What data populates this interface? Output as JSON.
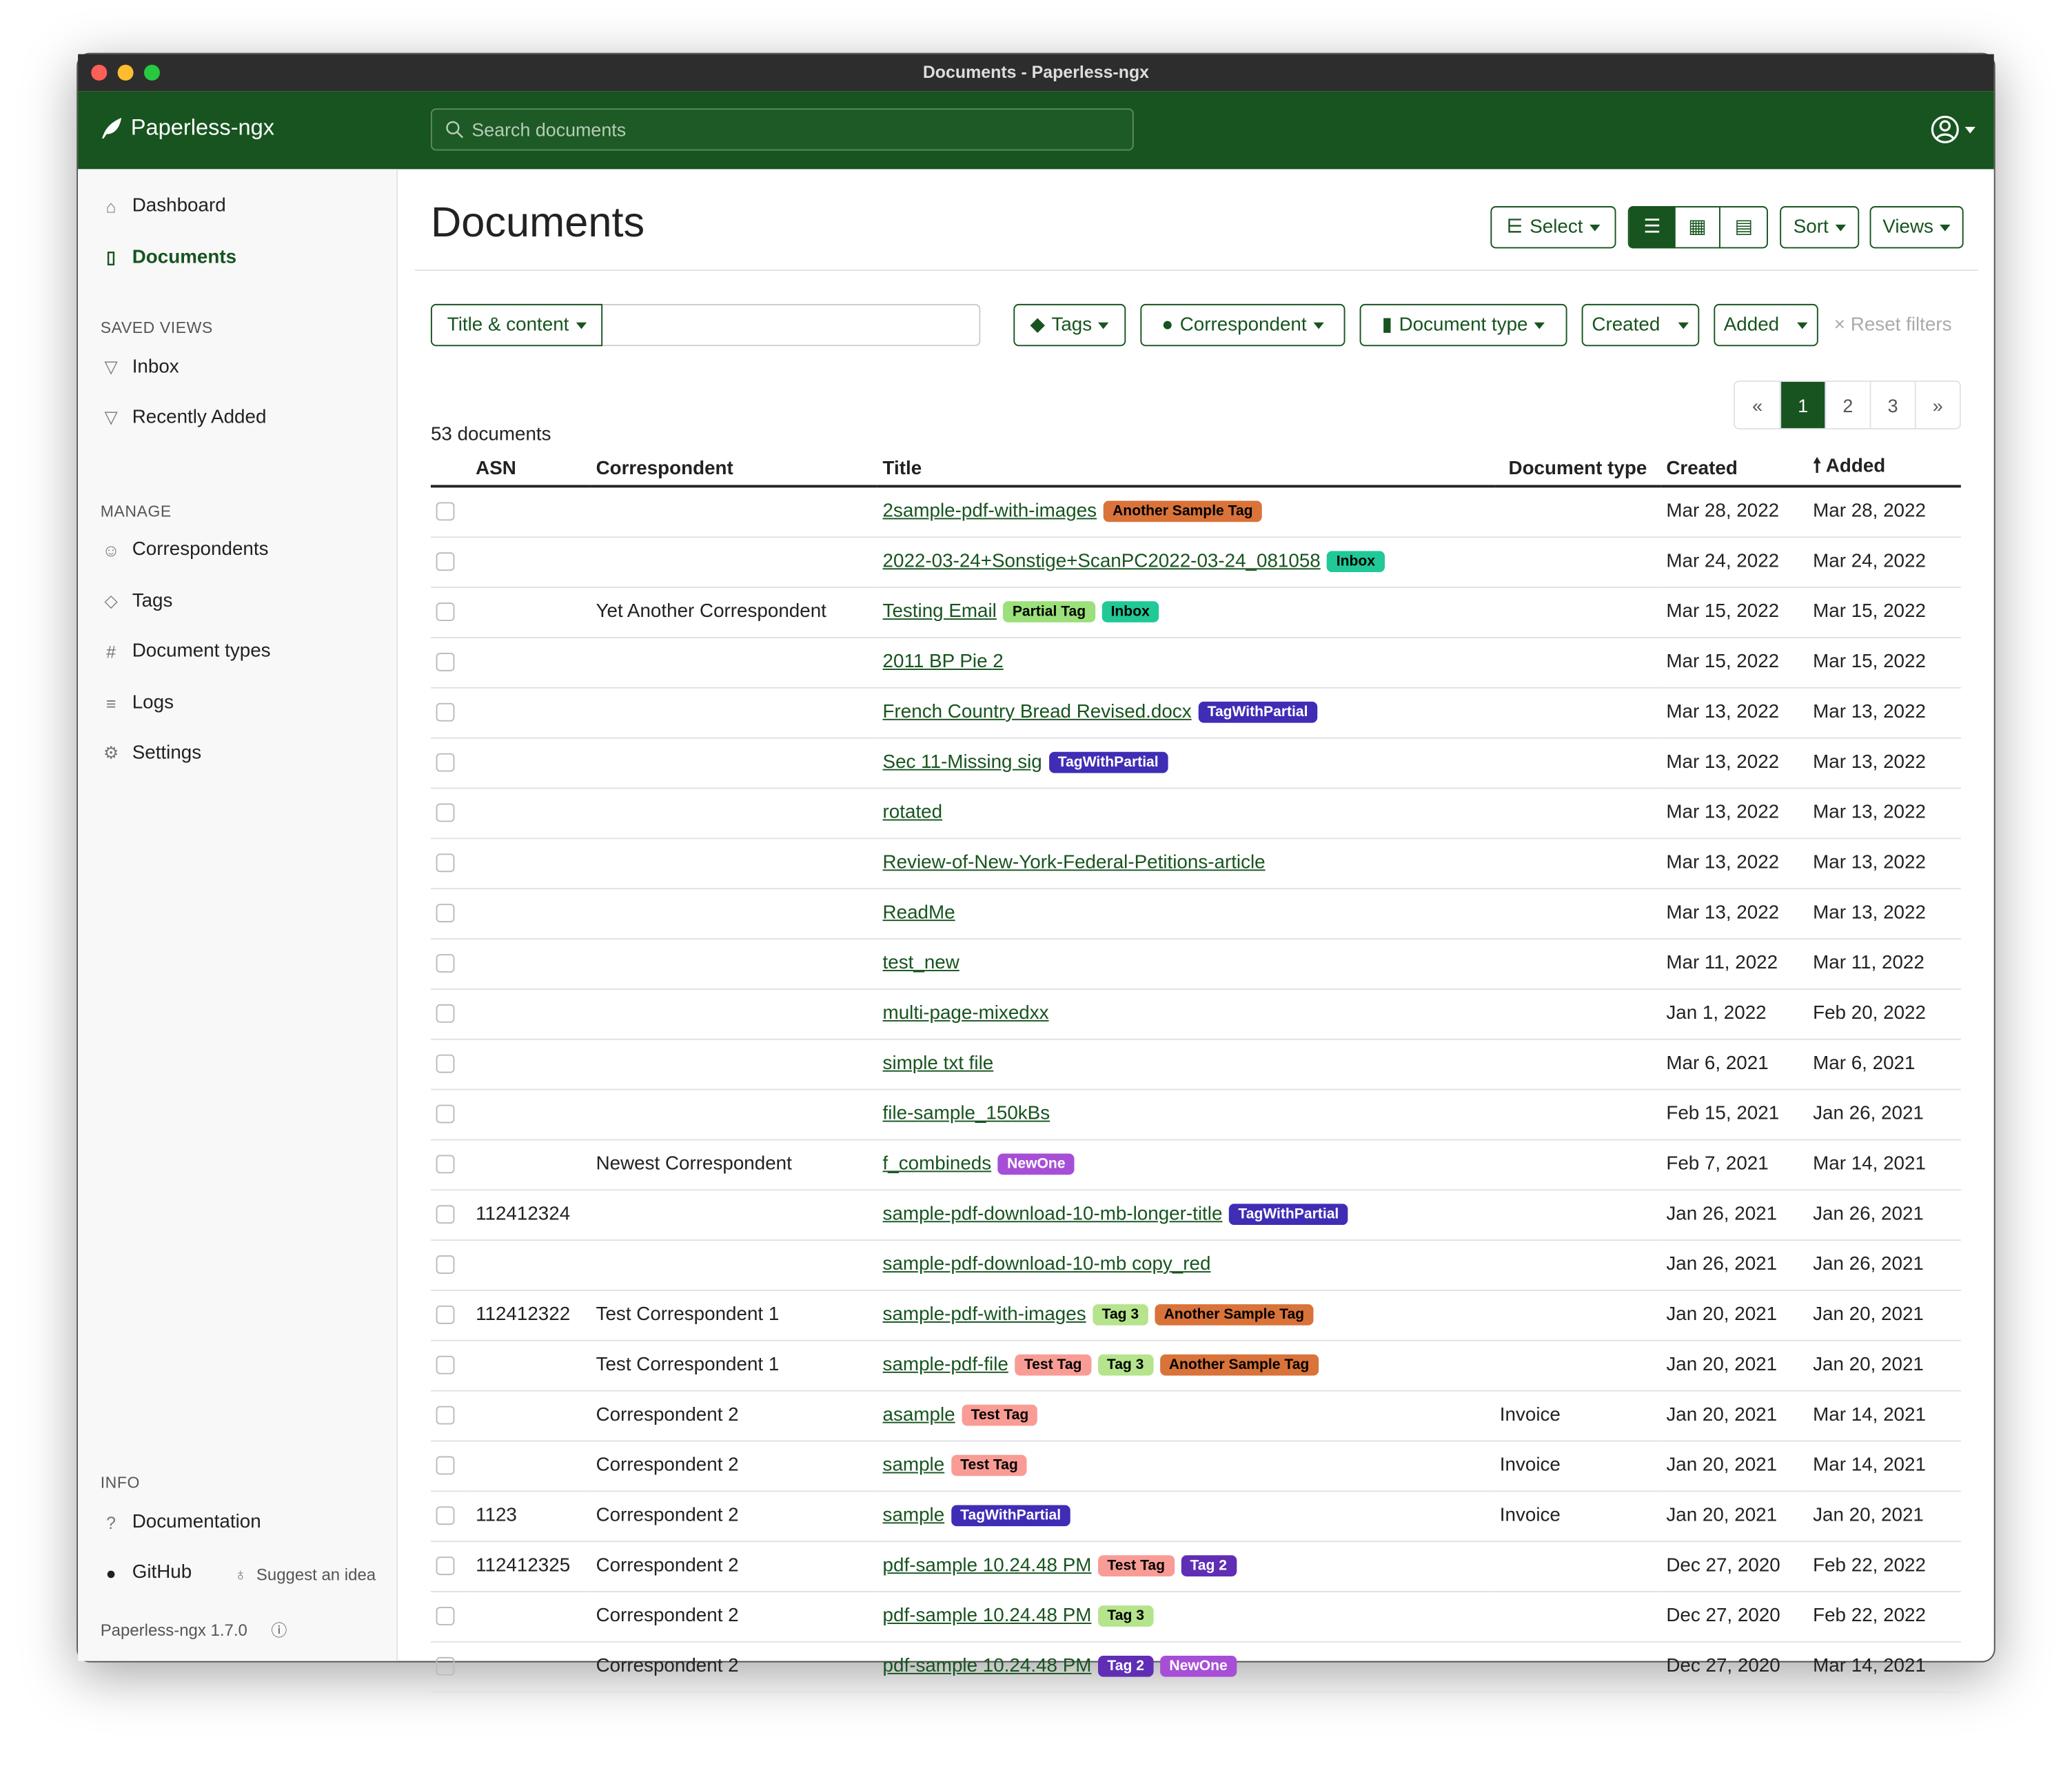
{
  "window_title": "Documents - Paperless-ngx",
  "brand": "Paperless-ngx",
  "search": {
    "placeholder": "Search documents"
  },
  "sidebar": {
    "items": [
      {
        "label": "Dashboard",
        "icon": "house-icon"
      },
      {
        "label": "Documents",
        "icon": "file-icon",
        "active": true
      }
    ],
    "saved_views_title": "SAVED VIEWS",
    "saved_views": [
      {
        "label": "Inbox",
        "icon": "funnel-icon"
      },
      {
        "label": "Recently Added",
        "icon": "funnel-icon"
      }
    ],
    "manage_title": "MANAGE",
    "manage": [
      {
        "label": "Correspondents",
        "icon": "person-icon"
      },
      {
        "label": "Tags",
        "icon": "tags-icon"
      },
      {
        "label": "Document types",
        "icon": "hash-icon"
      },
      {
        "label": "Logs",
        "icon": "list-icon"
      },
      {
        "label": "Settings",
        "icon": "gear-icon"
      }
    ],
    "info_title": "INFO",
    "documentation": "Documentation",
    "github": "GitHub",
    "suggest": "Suggest an idea",
    "version": "Paperless-ngx 1.7.0"
  },
  "main": {
    "title": "Documents",
    "toolbar": {
      "select": "Select",
      "sort": "Sort",
      "views": "Views",
      "view_mode": "details"
    },
    "filters": {
      "text_mode": "Title & content",
      "text_value": "",
      "tags": "Tags",
      "correspondent": "Correspondent",
      "document_type": "Document type",
      "created": "Created",
      "added": "Added",
      "reset": "Reset filters"
    },
    "count": "53 documents",
    "pagination": {
      "prev": "«",
      "pages": [
        "1",
        "2",
        "3"
      ],
      "current": "1",
      "next": "»"
    },
    "columns": [
      "ASN",
      "Correspondent",
      "Title",
      "Document type",
      "Created",
      "Added"
    ],
    "sort_column": "Added",
    "rows": [
      {
        "asn": "",
        "corr": "",
        "title": "2sample-pdf-with-images",
        "tags": [
          "Another Sample Tag"
        ],
        "type": "",
        "created": "Mar 28, 2022",
        "added": "Mar 28, 2022"
      },
      {
        "asn": "",
        "corr": "",
        "title": "2022-03-24+Sonstige+ScanPC2022-03-24_081058",
        "tags": [
          "Inbox"
        ],
        "type": "",
        "created": "Mar 24, 2022",
        "added": "Mar 24, 2022"
      },
      {
        "asn": "",
        "corr": "Yet Another Correspondent",
        "title": "Testing Email",
        "tags": [
          "Partial Tag",
          "Inbox"
        ],
        "type": "",
        "created": "Mar 15, 2022",
        "added": "Mar 15, 2022"
      },
      {
        "asn": "",
        "corr": "",
        "title": "2011 BP Pie 2",
        "tags": [],
        "type": "",
        "created": "Mar 15, 2022",
        "added": "Mar 15, 2022"
      },
      {
        "asn": "",
        "corr": "",
        "title": "French Country Bread Revised.docx",
        "tags": [
          "TagWithPartial"
        ],
        "type": "",
        "created": "Mar 13, 2022",
        "added": "Mar 13, 2022"
      },
      {
        "asn": "",
        "corr": "",
        "title": "Sec 11-Missing sig",
        "tags": [
          "TagWithPartial"
        ],
        "type": "",
        "created": "Mar 13, 2022",
        "added": "Mar 13, 2022"
      },
      {
        "asn": "",
        "corr": "",
        "title": "rotated",
        "tags": [],
        "type": "",
        "created": "Mar 13, 2022",
        "added": "Mar 13, 2022"
      },
      {
        "asn": "",
        "corr": "",
        "title": "Review-of-New-York-Federal-Petitions-article",
        "tags": [],
        "type": "",
        "created": "Mar 13, 2022",
        "added": "Mar 13, 2022"
      },
      {
        "asn": "",
        "corr": "",
        "title": "ReadMe",
        "tags": [],
        "type": "",
        "created": "Mar 13, 2022",
        "added": "Mar 13, 2022"
      },
      {
        "asn": "",
        "corr": "",
        "title": "test_new",
        "tags": [],
        "type": "",
        "created": "Mar 11, 2022",
        "added": "Mar 11, 2022"
      },
      {
        "asn": "",
        "corr": "",
        "title": "multi-page-mixedxx",
        "tags": [],
        "type": "",
        "created": "Jan 1, 2022",
        "added": "Feb 20, 2022"
      },
      {
        "asn": "",
        "corr": "",
        "title": "simple txt file",
        "tags": [],
        "type": "",
        "created": "Mar 6, 2021",
        "added": "Mar 6, 2021"
      },
      {
        "asn": "",
        "corr": "",
        "title": "file-sample_150kBs",
        "tags": [],
        "type": "",
        "created": "Feb 15, 2021",
        "added": "Jan 26, 2021"
      },
      {
        "asn": "",
        "corr": "Newest Correspondent",
        "title": "f_combineds",
        "tags": [
          "NewOne"
        ],
        "type": "",
        "created": "Feb 7, 2021",
        "added": "Mar 14, 2021"
      },
      {
        "asn": "112412324",
        "corr": "",
        "title": "sample-pdf-download-10-mb-longer-title",
        "tags": [
          "TagWithPartial"
        ],
        "type": "",
        "created": "Jan 26, 2021",
        "added": "Jan 26, 2021"
      },
      {
        "asn": "",
        "corr": "",
        "title": "sample-pdf-download-10-mb copy_red",
        "tags": [],
        "type": "",
        "created": "Jan 26, 2021",
        "added": "Jan 26, 2021"
      },
      {
        "asn": "112412322",
        "corr": "Test Correspondent 1",
        "title": "sample-pdf-with-images",
        "tags": [
          "Tag 3",
          "Another Sample Tag"
        ],
        "type": "",
        "created": "Jan 20, 2021",
        "added": "Jan 20, 2021"
      },
      {
        "asn": "",
        "corr": "Test Correspondent 1",
        "title": "sample-pdf-file",
        "tags": [
          "Test Tag",
          "Tag 3",
          "Another Sample Tag"
        ],
        "type": "",
        "created": "Jan 20, 2021",
        "added": "Jan 20, 2021"
      },
      {
        "asn": "",
        "corr": "Correspondent 2",
        "title": "asample",
        "tags": [
          "Test Tag"
        ],
        "type": "Invoice",
        "created": "Jan 20, 2021",
        "added": "Mar 14, 2021"
      },
      {
        "asn": "",
        "corr": "Correspondent 2",
        "title": "sample",
        "tags": [
          "Test Tag"
        ],
        "type": "Invoice",
        "created": "Jan 20, 2021",
        "added": "Mar 14, 2021"
      },
      {
        "asn": "1123",
        "corr": "Correspondent 2",
        "title": "sample",
        "tags": [
          "TagWithPartial"
        ],
        "type": "Invoice",
        "created": "Jan 20, 2021",
        "added": "Jan 20, 2021"
      },
      {
        "asn": "112412325",
        "corr": "Correspondent 2",
        "title": "pdf-sample 10.24.48 PM",
        "tags": [
          "Test Tag",
          "Tag 2"
        ],
        "type": "",
        "created": "Dec 27, 2020",
        "added": "Feb 22, 2022"
      },
      {
        "asn": "",
        "corr": "Correspondent 2",
        "title": "pdf-sample 10.24.48 PM",
        "tags": [
          "Tag 3"
        ],
        "type": "",
        "created": "Dec 27, 2020",
        "added": "Feb 22, 2022"
      },
      {
        "asn": "",
        "corr": "Correspondent 2",
        "title": "pdf-sample 10.24.48 PM",
        "tags": [
          "Tag 2",
          "NewOne"
        ],
        "type": "",
        "created": "Dec 27, 2020",
        "added": "Mar 14, 2021"
      }
    ]
  },
  "tag_colors": {
    "Another Sample Tag": {
      "bg": "#d9733a",
      "fg": "#000000"
    },
    "Inbox": {
      "bg": "#20c997",
      "fg": "#000000"
    },
    "Partial Tag": {
      "bg": "#9be07a",
      "fg": "#000000"
    },
    "TagWithPartial": {
      "bg": "#3f2db5",
      "fg": "#ffffff"
    },
    "NewOne": {
      "bg": "#a64fd6",
      "fg": "#ffffff"
    },
    "Test Tag": {
      "bg": "#f99c96",
      "fg": "#000000"
    },
    "Tag 3": {
      "bg": "#b5e48c",
      "fg": "#000000"
    },
    "Tag 2": {
      "bg": "#5f2eb5",
      "fg": "#ffffff"
    }
  },
  "colors": {
    "primary": "#17541f"
  }
}
